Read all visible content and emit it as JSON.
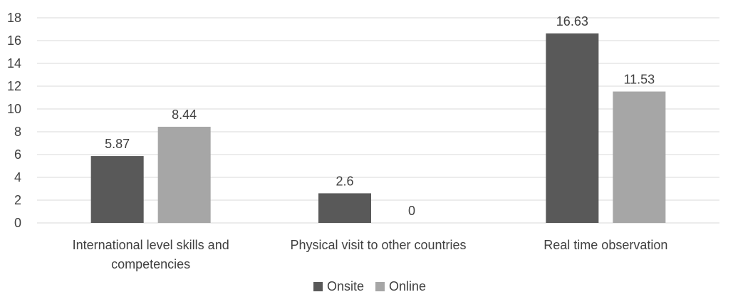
{
  "chart_data": {
    "type": "bar",
    "categories": [
      [
        "International level skills and",
        "competencies"
      ],
      [
        "Physical visit to other countries"
      ],
      [
        "Real time observation"
      ]
    ],
    "series": [
      {
        "name": "Onsite",
        "values": [
          5.87,
          2.6,
          16.63
        ],
        "labels": [
          "5.87",
          "2.6",
          "16.63"
        ],
        "color": "#595959"
      },
      {
        "name": "Online",
        "values": [
          8.44,
          0,
          11.53
        ],
        "labels": [
          "8.44",
          "0",
          "11.53"
        ],
        "color": "#a6a6a6"
      }
    ],
    "ylim": [
      0,
      18
    ],
    "yticks": [
      0,
      2,
      4,
      6,
      8,
      10,
      12,
      14,
      16,
      18
    ],
    "grid": true,
    "gridColor": "#d9d9d9",
    "legend": "bottom-center"
  }
}
